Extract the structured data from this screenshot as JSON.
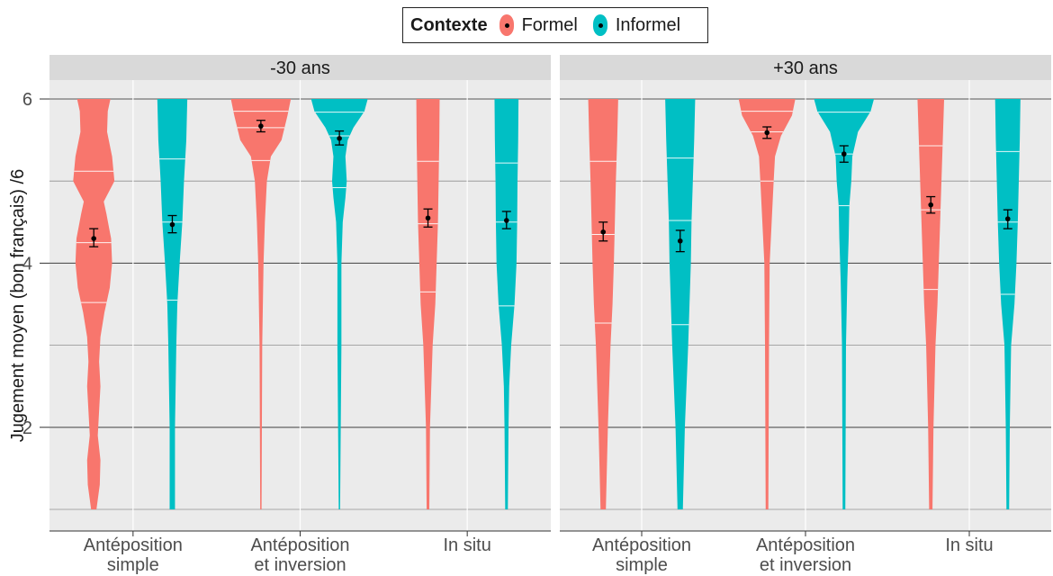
{
  "legend": {
    "title": "Contexte",
    "items": [
      {
        "label": "Formel",
        "color": "#F8766D"
      },
      {
        "label": "Informel",
        "color": "#00BFC4"
      }
    ]
  },
  "chart_data": {
    "type": "violin",
    "ylabel": "Jugement moyen (bon français) /6",
    "xlabel": "",
    "ylim": [
      1,
      6
    ],
    "yticks": [
      2,
      4,
      6
    ],
    "grid": true,
    "legend_position": "top",
    "categories": [
      [
        "Antéposition",
        "simple"
      ],
      [
        "Antéposition",
        "et inversion"
      ],
      [
        "In situ"
      ]
    ],
    "series": [
      {
        "name": "Formel",
        "color": "#F8766D"
      },
      {
        "name": "Informel",
        "color": "#00BFC4"
      }
    ],
    "panels": [
      {
        "title": "-30 ans",
        "groups": [
          {
            "category": 0,
            "series": 0,
            "mean": 4.3,
            "ci": [
              4.2,
              4.42
            ],
            "quartiles": [
              3.52,
              4.25,
              5.12
            ],
            "density": [
              [
                1,
                0.08
              ],
              [
                1.3,
                0.18
              ],
              [
                1.6,
                0.2
              ],
              [
                1.9,
                0.12
              ],
              [
                2.2,
                0.16
              ],
              [
                2.5,
                0.2
              ],
              [
                2.8,
                0.16
              ],
              [
                3.1,
                0.2
              ],
              [
                3.4,
                0.32
              ],
              [
                3.7,
                0.48
              ],
              [
                4.0,
                0.55
              ],
              [
                4.3,
                0.52
              ],
              [
                4.6,
                0.38
              ],
              [
                4.75,
                0.3
              ],
              [
                5.0,
                0.62
              ],
              [
                5.3,
                0.55
              ],
              [
                5.6,
                0.4
              ],
              [
                5.85,
                0.42
              ],
              [
                6,
                0.5
              ]
            ]
          },
          {
            "category": 0,
            "series": 1,
            "mean": 4.47,
            "ci": [
              4.37,
              4.58
            ],
            "quartiles": [
              3.55,
              4.5,
              5.27
            ],
            "density": [
              [
                1,
                0.08
              ],
              [
                2,
                0.08
              ],
              [
                3,
                0.12
              ],
              [
                3.5,
                0.15
              ],
              [
                4,
                0.22
              ],
              [
                4.5,
                0.3
              ],
              [
                5,
                0.35
              ],
              [
                5.5,
                0.42
              ],
              [
                6,
                0.45
              ]
            ]
          },
          {
            "category": 1,
            "series": 0,
            "mean": 5.67,
            "ci": [
              5.6,
              5.74
            ],
            "quartiles": [
              5.25,
              5.65,
              5.85
            ],
            "density": [
              [
                1,
                0.02
              ],
              [
                3,
                0.04
              ],
              [
                4,
                0.08
              ],
              [
                4.5,
                0.12
              ],
              [
                5,
                0.18
              ],
              [
                5.3,
                0.3
              ],
              [
                5.5,
                0.62
              ],
              [
                5.8,
                0.8
              ],
              [
                6,
                0.9
              ]
            ]
          },
          {
            "category": 1,
            "series": 1,
            "mean": 5.52,
            "ci": [
              5.44,
              5.61
            ],
            "quartiles": [
              4.92,
              5.55,
              5.84
            ],
            "density": [
              [
                1,
                0.02
              ],
              [
                2,
                0.04
              ],
              [
                3,
                0.06
              ],
              [
                4,
                0.06
              ],
              [
                4.5,
                0.1
              ],
              [
                4.8,
                0.18
              ],
              [
                5.0,
                0.22
              ],
              [
                5.3,
                0.18
              ],
              [
                5.5,
                0.25
              ],
              [
                5.65,
                0.42
              ],
              [
                5.85,
                0.75
              ],
              [
                6,
                0.85
              ]
            ]
          },
          {
            "category": 2,
            "series": 0,
            "mean": 4.55,
            "ci": [
              4.44,
              4.66
            ],
            "quartiles": [
              3.65,
              4.48,
              5.24
            ],
            "density": [
              [
                1,
                0.04
              ],
              [
                2,
                0.06
              ],
              [
                3,
                0.14
              ],
              [
                3.5,
                0.22
              ],
              [
                4,
                0.26
              ],
              [
                4.5,
                0.3
              ],
              [
                5,
                0.32
              ],
              [
                5.5,
                0.34
              ],
              [
                6,
                0.35
              ]
            ]
          },
          {
            "category": 2,
            "series": 1,
            "mean": 4.52,
            "ci": [
              4.42,
              4.63
            ],
            "quartiles": [
              3.48,
              4.5,
              5.22
            ],
            "density": [
              [
                1,
                0.04
              ],
              [
                2,
                0.06
              ],
              [
                2.5,
                0.08
              ],
              [
                3,
                0.14
              ],
              [
                3.5,
                0.24
              ],
              [
                4,
                0.3
              ],
              [
                4.5,
                0.32
              ],
              [
                5,
                0.33
              ],
              [
                5.5,
                0.35
              ],
              [
                6,
                0.36
              ]
            ]
          }
        ]
      },
      {
        "title": "+30 ans",
        "groups": [
          {
            "category": 0,
            "series": 0,
            "mean": 4.38,
            "ci": [
              4.27,
              4.5
            ],
            "quartiles": [
              3.27,
              4.35,
              5.24
            ],
            "density": [
              [
                1,
                0.08
              ],
              [
                2,
                0.14
              ],
              [
                3,
                0.22
              ],
              [
                3.5,
                0.28
              ],
              [
                4,
                0.32
              ],
              [
                4.5,
                0.35
              ],
              [
                5,
                0.38
              ],
              [
                5.5,
                0.42
              ],
              [
                6,
                0.45
              ]
            ]
          },
          {
            "category": 0,
            "series": 1,
            "mean": 4.27,
            "ci": [
              4.14,
              4.4
            ],
            "quartiles": [
              3.25,
              4.52,
              5.28
            ],
            "density": [
              [
                1,
                0.08
              ],
              [
                2,
                0.14
              ],
              [
                3,
                0.24
              ],
              [
                3.5,
                0.28
              ],
              [
                4,
                0.32
              ],
              [
                4.5,
                0.34
              ],
              [
                5,
                0.38
              ],
              [
                5.5,
                0.42
              ],
              [
                6,
                0.45
              ]
            ]
          },
          {
            "category": 1,
            "series": 0,
            "mean": 5.59,
            "ci": [
              5.52,
              5.66
            ],
            "quartiles": [
              5.0,
              5.6,
              5.85
            ],
            "density": [
              [
                1,
                0.04
              ],
              [
                3,
                0.06
              ],
              [
                4,
                0.08
              ],
              [
                4.5,
                0.14
              ],
              [
                5,
                0.2
              ],
              [
                5.3,
                0.24
              ],
              [
                5.55,
                0.42
              ],
              [
                5.8,
                0.75
              ],
              [
                6,
                0.85
              ]
            ]
          },
          {
            "category": 1,
            "series": 1,
            "mean": 5.33,
            "ci": [
              5.23,
              5.43
            ],
            "quartiles": [
              4.7,
              5.33,
              5.84
            ],
            "density": [
              [
                1,
                0.04
              ],
              [
                2,
                0.05
              ],
              [
                3,
                0.06
              ],
              [
                3.8,
                0.1
              ],
              [
                4.3,
                0.14
              ],
              [
                4.7,
                0.16
              ],
              [
                5,
                0.22
              ],
              [
                5.3,
                0.25
              ],
              [
                5.6,
                0.42
              ],
              [
                5.85,
                0.8
              ],
              [
                6,
                0.9
              ]
            ]
          },
          {
            "category": 2,
            "series": 0,
            "mean": 4.71,
            "ci": [
              4.61,
              4.81
            ],
            "quartiles": [
              3.68,
              4.65,
              5.43
            ],
            "density": [
              [
                1,
                0.05
              ],
              [
                2,
                0.08
              ],
              [
                3,
                0.14
              ],
              [
                3.5,
                0.2
              ],
              [
                4,
                0.24
              ],
              [
                4.5,
                0.28
              ],
              [
                5,
                0.32
              ],
              [
                5.5,
                0.36
              ],
              [
                6,
                0.4
              ]
            ]
          },
          {
            "category": 2,
            "series": 1,
            "mean": 4.54,
            "ci": [
              4.42,
              4.65
            ],
            "quartiles": [
              3.62,
              4.5,
              5.36
            ],
            "density": [
              [
                1,
                0.04
              ],
              [
                2,
                0.06
              ],
              [
                3,
                0.1
              ],
              [
                3.5,
                0.2
              ],
              [
                4,
                0.26
              ],
              [
                4.5,
                0.3
              ],
              [
                5,
                0.33
              ],
              [
                5.5,
                0.36
              ],
              [
                6,
                0.38
              ]
            ]
          }
        ]
      }
    ]
  }
}
